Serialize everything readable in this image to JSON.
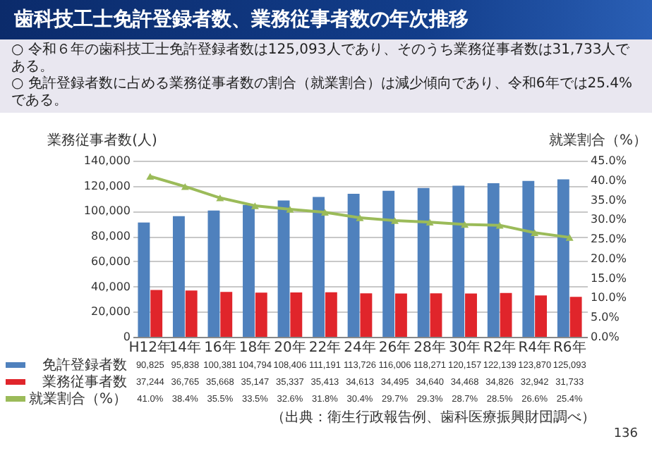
{
  "chart_data": {
    "type": "bar",
    "title": "歯科技工士免許登録者数、業務従事者数の年次推移",
    "annotations": [
      "○ 令和６年の歯科技工士免許登録者数は125,093人であり、そのうち業務従事者数は31,733人である。",
      "○ 免許登録者数に占める業務従事者数の割合（就業割合）は減少傾向であり、令和6年では25.4%である。",
      "（出典：衛生行政報告例、歯科医療振興財団調べ）",
      "136"
    ],
    "ylabel": "業務従事者数(人)",
    "y2label": "就業割合（%）",
    "categories": [
      "H12年",
      "14年",
      "16年",
      "18年",
      "20年",
      "22年",
      "24年",
      "26年",
      "28年",
      "30年",
      "R2年",
      "R4年",
      "R6年"
    ],
    "series": [
      {
        "name": "免許登録者数",
        "color": "#4f81bd",
        "values": [
          90825,
          95838,
          100381,
          104794,
          108406,
          111191,
          113726,
          116006,
          118271,
          120157,
          122139,
          123870,
          125093
        ],
        "value_labels": [
          "90,825",
          "95,838",
          "100,381",
          "104,794",
          "108,406",
          "111,191",
          "113,726",
          "116,006",
          "118,271",
          "120,157",
          "122,139",
          "123,870",
          "125,093"
        ]
      },
      {
        "name": "業務従事者数",
        "color": "#e0252b",
        "values": [
          37244,
          36765,
          35668,
          35147,
          35337,
          35413,
          34613,
          34495,
          34640,
          34468,
          34826,
          32942,
          31733
        ],
        "value_labels": [
          "37,244",
          "36,765",
          "35,668",
          "35,147",
          "35,337",
          "35,413",
          "34,613",
          "34,495",
          "34,640",
          "34,468",
          "34,826",
          "32,942",
          "31,733"
        ]
      },
      {
        "name": "就業割合（%）",
        "type": "line",
        "axis": "y2",
        "color": "#9bbb59",
        "values": [
          41.0,
          38.4,
          35.5,
          33.5,
          32.6,
          31.8,
          30.4,
          29.7,
          29.3,
          28.7,
          28.5,
          26.6,
          25.4
        ],
        "value_labels": [
          "41.0%",
          "38.4%",
          "35.5%",
          "33.5%",
          "32.6%",
          "31.8%",
          "30.4%",
          "29.7%",
          "29.3%",
          "28.7%",
          "28.5%",
          "26.6%",
          "25.4%"
        ]
      }
    ],
    "ylim": [
      0,
      140000
    ],
    "yticks": [
      0,
      {
        "value": 20000,
        "label": "20,000"
      },
      {
        "value": 40000,
        "label": "40,000"
      },
      {
        "value": 60000,
        "label": "60,000"
      },
      {
        "value": 80000,
        "label": "80,000"
      },
      {
        "value": 100000,
        "label": "100,000"
      },
      {
        "value": 120000,
        "label": "120,000"
      },
      {
        "value": 140000,
        "label": "140,000"
      }
    ],
    "y2lim": [
      0,
      45
    ],
    "y2ticks": [
      {
        "value": 0,
        "label": "0.0%"
      },
      {
        "value": 5,
        "label": "5.0%"
      },
      {
        "value": 10,
        "label": "10.0%"
      },
      {
        "value": 15,
        "label": "15.0%"
      },
      {
        "value": 20,
        "label": "20.0%"
      },
      {
        "value": 25,
        "label": "25.0%"
      },
      {
        "value": 30,
        "label": "30.0%"
      },
      {
        "value": 35,
        "label": "35.0%"
      },
      {
        "value": 40,
        "label": "40.0%"
      },
      {
        "value": 45,
        "label": "45.0%"
      }
    ],
    "grid": "y",
    "legend": "bottom",
    "marker": "triangle"
  }
}
